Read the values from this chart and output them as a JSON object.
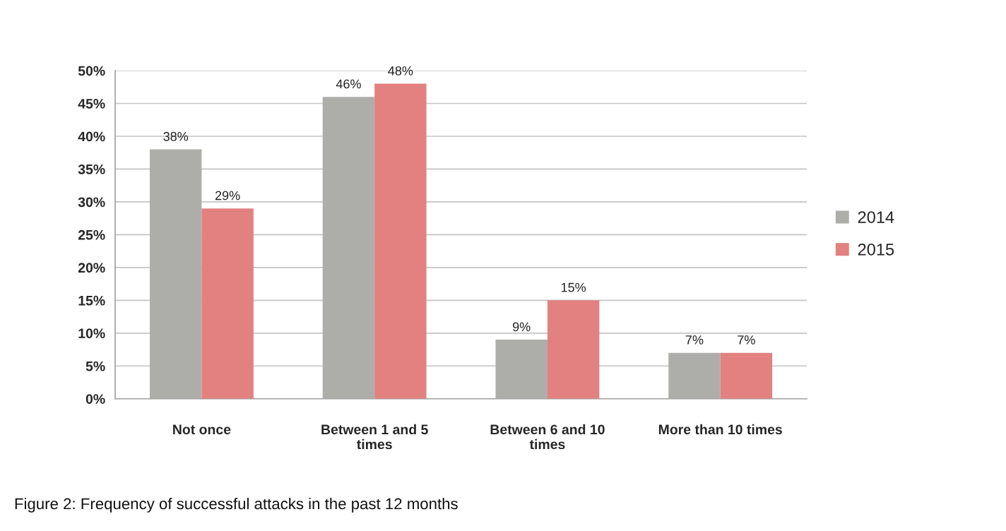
{
  "chart_data": {
    "type": "bar",
    "categories": [
      "Not once",
      "Between 1 and 5\ntimes",
      "Between 6 and 10\ntimes",
      "More than 10 times"
    ],
    "series": [
      {
        "name": "2014",
        "color": "#adaeaa",
        "values": [
          38,
          46,
          9,
          7
        ],
        "value_labels": [
          "38%",
          "46%",
          "9%",
          "7%"
        ]
      },
      {
        "name": "2015",
        "color": "#e38080",
        "values": [
          29,
          48,
          15,
          7
        ],
        "value_labels": [
          "29%",
          "48%",
          "15%",
          "7%"
        ]
      }
    ],
    "ylim": [
      0,
      50
    ],
    "yticks": [
      {
        "value": 0,
        "label": "0%"
      },
      {
        "value": 5,
        "label": "5%"
      },
      {
        "value": 10,
        "label": "10%"
      },
      {
        "value": 15,
        "label": "15%"
      },
      {
        "value": 20,
        "label": "20%"
      },
      {
        "value": 25,
        "label": "25%"
      },
      {
        "value": 30,
        "label": "30%"
      },
      {
        "value": 35,
        "label": "35%"
      },
      {
        "value": 40,
        "label": "40%"
      },
      {
        "value": 45,
        "label": "45%"
      },
      {
        "value": 50,
        "label": "50%"
      }
    ],
    "grid": "y",
    "legend": "right",
    "annotations": [
      "Figure 2: Frequency of successful attacks in the past 12 months"
    ]
  }
}
